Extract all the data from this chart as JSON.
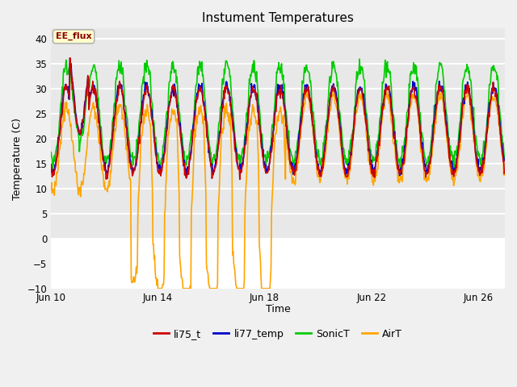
{
  "title": "Instument Temperatures",
  "xlabel": "Time",
  "ylabel": "Temperature (C)",
  "ylim": [
    -10,
    42
  ],
  "yticks": [
    -10,
    -5,
    0,
    5,
    10,
    15,
    20,
    25,
    30,
    35,
    40
  ],
  "plot_bg_upper": "#e8e8e8",
  "plot_bg_lower": "#ffffff",
  "grid_color": "#ffffff",
  "colors": {
    "li75_t": "#cc0000",
    "li77_temp": "#0000cc",
    "SonicT": "#00cc00",
    "AirT": "#ffa500"
  },
  "annotation_text": "EE_flux",
  "annotation_bg": "#ffffcc",
  "annotation_border": "#aaaaaa",
  "x_tick_positions": [
    0,
    4,
    8,
    12,
    16
  ],
  "x_tick_labels": [
    "Jun 10",
    "Jun 14",
    "Jun 18",
    "Jun 22",
    "Jun 26"
  ],
  "xlim": [
    0,
    17
  ]
}
